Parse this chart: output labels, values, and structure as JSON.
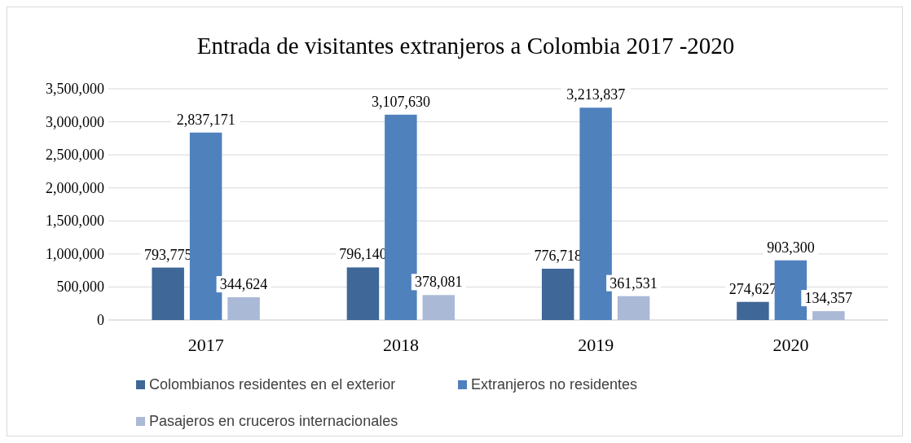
{
  "chart_data": {
    "type": "bar",
    "title": "Entrada de visitantes extranjeros a Colombia 2017 -2020",
    "categories": [
      "2017",
      "2018",
      "2019",
      "2020"
    ],
    "series": [
      {
        "name": "Colombianos residentes en el exterior",
        "color": "#3f6797",
        "values": [
          793775,
          796140,
          776718,
          274627
        ],
        "value_labels": [
          "793,775",
          "796,140",
          "776,718",
          "274,627"
        ]
      },
      {
        "name": "Extranjeros no residentes",
        "color": "#4f81bd",
        "values": [
          2837171,
          3107630,
          3213837,
          903300
        ],
        "value_labels": [
          "2,837,171",
          "3,107,630",
          "3,213,837",
          "903,300"
        ]
      },
      {
        "name": "Pasajeros en cruceros internacionales",
        "color": "#a9b9d6",
        "values": [
          344624,
          378081,
          361531,
          134357
        ],
        "value_labels": [
          "344,624",
          "378,081",
          "361,531",
          "134,357"
        ]
      }
    ],
    "ylim": [
      0,
      3500000
    ],
    "yticks": [
      {
        "value": 0,
        "label": "0"
      },
      {
        "value": 500000,
        "label": "500,000"
      },
      {
        "value": 1000000,
        "label": "1,000,000"
      },
      {
        "value": 1500000,
        "label": "1,500,000"
      },
      {
        "value": 2000000,
        "label": "2,000,000"
      },
      {
        "value": 2500000,
        "label": "2,500,000"
      },
      {
        "value": 3000000,
        "label": "3,000,000"
      },
      {
        "value": 3500000,
        "label": "3,500,000"
      }
    ],
    "grid": "y",
    "legend": "bottom"
  }
}
